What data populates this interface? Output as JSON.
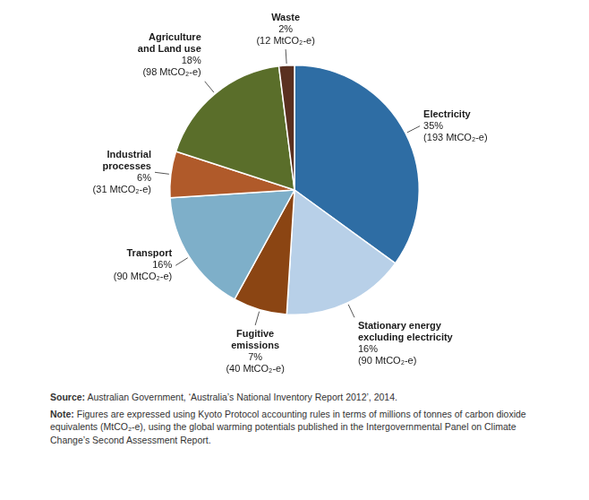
{
  "chart_data": {
    "type": "pie",
    "categories": [
      "Electricity",
      "Stationary energy\nexcluding electricity",
      "Fugitive\nemissions",
      "Transport",
      "Industrial\nprocesses",
      "Agriculture\nand Land use",
      "Waste"
    ],
    "values": [
      35,
      16,
      7,
      16,
      6,
      18,
      2
    ],
    "value_labels": [
      "35%",
      "16%",
      "7%",
      "16%",
      "6%",
      "18%",
      "2%"
    ],
    "emission_labels": [
      "(193 MtCO₂-e)",
      "(90 MtCO₂-e)",
      "(40 MtCO₂-e)",
      "(90 MtCO₂-e)",
      "(31 MtCO₂-e)",
      "(98 MtCO₂-e)",
      "(12 MtCO₂-e)"
    ],
    "colors": [
      "#2e6da4",
      "#b8d0e8",
      "#8b4513",
      "#7eafc9",
      "#b05a2a",
      "#5a6e2a",
      "#5a3020"
    ],
    "data_labels": true,
    "annotations": [
      "Source: Australian Government, ‘Australia’s National Inventory Report 2012’, 2014.",
      "Note: Figures are expressed using Kyoto Protocol accounting rules in terms of millions of tonnes of carbon dioxide equivalents (MtCO₂-e), using the global warming potentials published in the Intergovernmental Panel on Climate Change’s Second Assessment Report."
    ]
  }
}
